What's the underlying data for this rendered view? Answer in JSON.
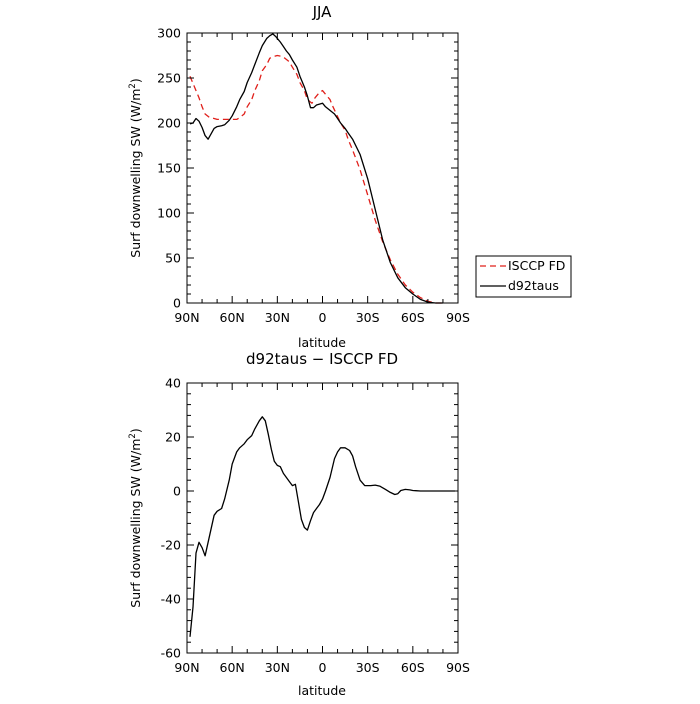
{
  "chart_data": [
    {
      "type": "line",
      "title": "JJA",
      "xlabel": "latitude",
      "ylabel": "Surf downwelling SW (W/m",
      "ylabel_sup": "2",
      "ylabel_close": ")",
      "xlim": [
        90,
        -90
      ],
      "ylim": [
        0,
        300
      ],
      "x_ticks": [
        90,
        60,
        30,
        0,
        -30,
        -60,
        -90
      ],
      "x_tick_labels": [
        "90N",
        "60N",
        "30N",
        "0",
        "30S",
        "60S",
        "90S"
      ],
      "y_ticks": [
        0,
        50,
        100,
        150,
        200,
        250,
        300
      ],
      "legend_position": "right",
      "series": [
        {
          "name": "ISCCP FD",
          "color": "#e0201b",
          "dash": "dashed",
          "x": [
            88,
            85,
            82,
            80,
            78,
            75,
            72,
            70,
            67,
            65,
            62,
            60,
            57,
            55,
            52,
            50,
            47,
            45,
            42,
            40,
            37,
            35,
            32,
            30,
            27,
            25,
            22,
            20,
            17,
            15,
            12,
            10,
            7,
            5,
            2,
            0,
            -2,
            -5,
            -7,
            -10,
            -12,
            -15,
            -17,
            -20,
            -25,
            -30,
            -35,
            -40,
            -45,
            -50,
            -55,
            -60,
            -65,
            -70,
            -75,
            -80
          ],
          "y": [
            252,
            240,
            228,
            218,
            210,
            206,
            205,
            204,
            204,
            204,
            204,
            204,
            204,
            206,
            210,
            218,
            226,
            236,
            247,
            258,
            265,
            272,
            274,
            275,
            274,
            272,
            268,
            262,
            254,
            245,
            236,
            226,
            222,
            228,
            234,
            236,
            232,
            226,
            218,
            207,
            200,
            192,
            182,
            170,
            148,
            120,
            92,
            68,
            48,
            32,
            20,
            12,
            6,
            2,
            0,
            0
          ]
        },
        {
          "name": "d92taus",
          "color": "#000000",
          "dash": "solid",
          "x": [
            88,
            86,
            84,
            82,
            80,
            78,
            76,
            74,
            72,
            70,
            67,
            65,
            62,
            60,
            57,
            55,
            52,
            50,
            47,
            45,
            42,
            40,
            37,
            35,
            33,
            31,
            30,
            28,
            26,
            24,
            22,
            20,
            17,
            15,
            12,
            10,
            8,
            6,
            4,
            2,
            0,
            -2,
            -5,
            -8,
            -10,
            -12,
            -15,
            -17,
            -20,
            -25,
            -30,
            -35,
            -40,
            -45,
            -50,
            -55,
            -60,
            -65,
            -70,
            -75,
            -80
          ],
          "y": [
            199,
            200,
            205,
            202,
            195,
            186,
            182,
            188,
            194,
            196,
            197,
            198,
            203,
            208,
            218,
            226,
            235,
            245,
            256,
            265,
            278,
            286,
            294,
            297,
            299,
            296,
            294,
            290,
            285,
            280,
            276,
            270,
            262,
            252,
            240,
            230,
            217,
            217,
            220,
            221,
            222,
            218,
            214,
            210,
            205,
            200,
            194,
            189,
            182,
            165,
            138,
            104,
            70,
            45,
            28,
            17,
            10,
            4,
            1,
            0,
            0
          ]
        }
      ]
    },
    {
      "type": "line",
      "title": "d92taus − ISCCP FD",
      "xlabel": "latitude",
      "ylabel": "Surf downwelling SW (W/m",
      "ylabel_sup": "2",
      "ylabel_close": ")",
      "xlim": [
        90,
        -90
      ],
      "ylim": [
        -60,
        40
      ],
      "x_ticks": [
        90,
        60,
        30,
        0,
        -30,
        -60,
        -90
      ],
      "x_tick_labels": [
        "90N",
        "60N",
        "30N",
        "0",
        "30S",
        "60S",
        "90S"
      ],
      "y_ticks": [
        -60,
        -40,
        -20,
        0,
        20,
        40
      ],
      "series": [
        {
          "color": "#000000",
          "dash": "solid",
          "x": [
            88,
            86,
            84,
            82,
            80,
            78,
            76,
            74,
            72,
            70,
            67,
            65,
            62,
            60,
            57,
            55,
            52,
            50,
            47,
            45,
            42,
            40,
            38,
            36,
            34,
            32,
            30,
            28,
            26,
            24,
            22,
            20,
            18,
            16,
            14,
            12,
            10,
            8,
            6,
            4,
            2,
            0,
            -2,
            -5,
            -8,
            -10,
            -12,
            -15,
            -18,
            -20,
            -22,
            -25,
            -28,
            -30,
            -32,
            -35,
            -38,
            -40,
            -42,
            -45,
            -48,
            -50,
            -52,
            -55,
            -58,
            -60,
            -62,
            -65,
            -68,
            -70,
            -75,
            -80,
            -85,
            -88
          ],
          "y": [
            -54,
            -43,
            -23,
            -19,
            -21,
            -24,
            -19,
            -14,
            -9,
            -7.5,
            -6.5,
            -3,
            4,
            10,
            14.5,
            16,
            17.5,
            19,
            20.5,
            23,
            26,
            27.5,
            26,
            21,
            15.5,
            11,
            9.5,
            9,
            6.5,
            5,
            3.5,
            2,
            2.5,
            -4,
            -10.5,
            -13.5,
            -14.5,
            -11,
            -8,
            -6.5,
            -5,
            -3,
            0,
            5,
            12,
            14.5,
            16,
            16,
            15,
            13,
            9,
            4,
            2,
            2,
            2,
            2.2,
            1.8,
            1.2,
            0.5,
            -0.5,
            -1.3,
            -1,
            0.2,
            0.6,
            0.4,
            0.2,
            0.1,
            0,
            0,
            0,
            0,
            0,
            0,
            0
          ]
        }
      ]
    }
  ]
}
